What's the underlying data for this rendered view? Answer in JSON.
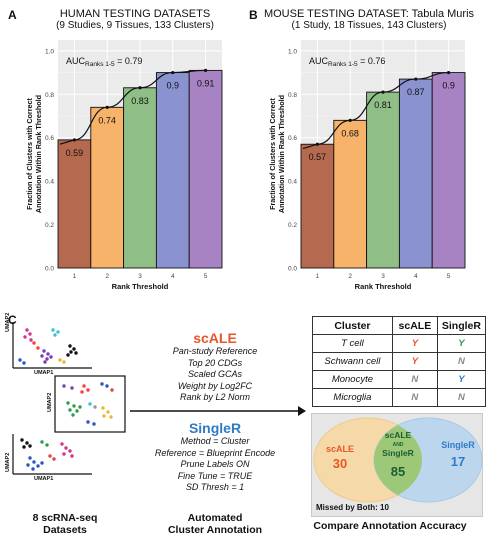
{
  "panel_labels": {
    "a": "A",
    "b": "B",
    "c": "C"
  },
  "chart_data": [
    {
      "type": "bar",
      "title": "HUMAN TESTING DATASETS",
      "subtitle": "(9 Studies, 9 Tissues, 133 Clusters)",
      "xlabel": "Rank Threshold",
      "ylabel_lines": [
        "Fraction of Clusters with Correct",
        "Annotation Within Rank Threshold"
      ],
      "auc_main": "AUC",
      "auc_sub": "Ranks 1-5",
      "auc_value": "= 0.79",
      "categories": [
        "1",
        "2",
        "3",
        "4",
        "5"
      ],
      "values": [
        0.59,
        0.74,
        0.83,
        0.9,
        0.91
      ],
      "value_labels": [
        "0.59",
        "0.74",
        "0.83",
        "0.9",
        "0.91"
      ],
      "y_ticks": [
        "0.0",
        "0.2",
        "0.4",
        "0.6",
        "0.8",
        "1.0"
      ],
      "ylim": [
        0,
        1.05
      ],
      "bar_colors": [
        "#b5694f",
        "#f7b36a",
        "#8fbf86",
        "#8a93d0",
        "#a883c4"
      ],
      "grid": true,
      "fit_curve": true
    },
    {
      "type": "bar",
      "title": "MOUSE TESTING DATASET: Tabula Muris",
      "subtitle": "(1 Study, 18 Tissues, 143 Clusters)",
      "xlabel": "Rank Threshold",
      "ylabel_lines": [
        "Fraction of Clusters with Correct",
        "Annotation Within Rank Threshold"
      ],
      "auc_main": "AUC",
      "auc_sub": "Ranks 1-5",
      "auc_value": "= 0.76",
      "categories": [
        "1",
        "2",
        "3",
        "4",
        "5"
      ],
      "values": [
        0.57,
        0.68,
        0.81,
        0.87,
        0.9
      ],
      "value_labels": [
        "0.57",
        "0.68",
        "0.81",
        "0.87",
        "0.9"
      ],
      "y_ticks": [
        "0.0",
        "0.2",
        "0.4",
        "0.6",
        "0.8",
        "1.0"
      ],
      "ylim": [
        0,
        1.05
      ],
      "bar_colors": [
        "#b5694f",
        "#f7b36a",
        "#8fbf86",
        "#8a93d0",
        "#a883c4"
      ],
      "grid": true,
      "fit_curve": true
    }
  ],
  "umap_axis_labels": {
    "x": "UMAP1",
    "y": "UMAP2"
  },
  "scale_method": {
    "name": "scALE",
    "lines": [
      "Pan-study Reference",
      "Top 20 CDGs",
      "Scaled GCAs",
      "Weight by Log2FC",
      "Rank by L2 Norm"
    ],
    "color": "#e8572a"
  },
  "singler_method": {
    "name": "SingleR",
    "lines": [
      "Method = Cluster",
      "Reference = Blueprint Encode",
      "Prune Labels ON",
      "Fine Tune = TRUE",
      "SD Thresh = 1"
    ],
    "color": "#2f7bc8"
  },
  "captions": {
    "datasets": [
      "8 scRNA-seq",
      "Datasets"
    ],
    "annotation": [
      "Automated",
      "Cluster Annotation"
    ],
    "compare": "Compare Annotation Accuracy"
  },
  "comparison_table": {
    "headers": [
      "Cluster",
      "scALE",
      "SingleR"
    ],
    "rows": [
      {
        "cluster": "T cell",
        "scale": "Y",
        "singler": "Y"
      },
      {
        "cluster": "Schwann cell",
        "scale": "Y",
        "singler": "N"
      },
      {
        "cluster": "Monocyte",
        "scale": "N",
        "singler": "Y"
      },
      {
        "cluster": "Microglia",
        "scale": "N",
        "singler": "N"
      }
    ]
  },
  "mark_colors": {
    "scale_Y": "#e8572a",
    "singler_Y": "#2f9a55",
    "N": "#888888",
    "T_singler_Y": "#2f9a55",
    "Mono_singler_Y": "#2f7bc8"
  },
  "venn": {
    "left_label": "scALE",
    "left_count": "30",
    "center_label_top": "scALE",
    "center_label_and": "AND",
    "center_label_bottom": "SingleR",
    "center_count": "85",
    "right_label": "SingleR",
    "right_count": "17",
    "missed": "Missed by Both: 10"
  }
}
